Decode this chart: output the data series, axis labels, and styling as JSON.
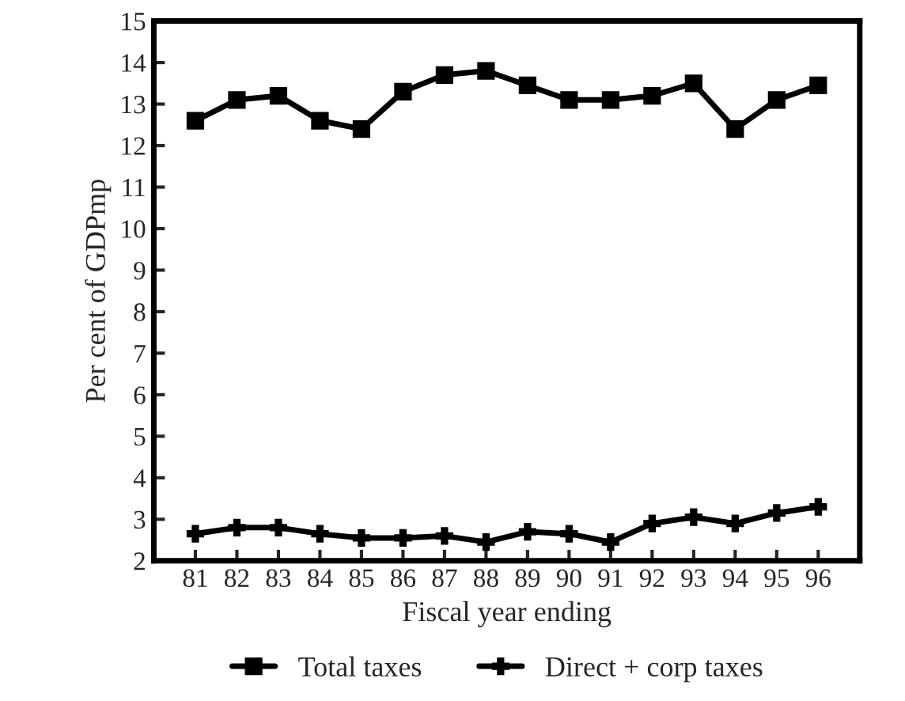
{
  "chart_data": {
    "type": "line",
    "xlabel": "Fiscal year ending",
    "ylabel": "Per cent of GDPmp",
    "categories": [
      "81",
      "82",
      "83",
      "84",
      "85",
      "86",
      "87",
      "88",
      "89",
      "90",
      "91",
      "92",
      "93",
      "94",
      "95",
      "96"
    ],
    "series": [
      {
        "name": "Total taxes",
        "color": "#000000",
        "marker": "square",
        "values": [
          12.6,
          13.1,
          13.2,
          12.6,
          12.4,
          13.3,
          13.7,
          13.8,
          13.45,
          13.1,
          13.1,
          13.2,
          13.5,
          12.4,
          13.1,
          13.45
        ]
      },
      {
        "name": "Direct + corp taxes",
        "color": "#000000",
        "marker": "cross",
        "values": [
          2.65,
          2.8,
          2.8,
          2.65,
          2.55,
          2.55,
          2.6,
          2.45,
          2.7,
          2.65,
          2.45,
          2.9,
          3.05,
          2.9,
          3.15,
          3.3
        ]
      }
    ],
    "ylim": [
      2,
      15
    ],
    "yticks": [
      2,
      3,
      4,
      5,
      6,
      7,
      8,
      9,
      10,
      11,
      12,
      13,
      14,
      15
    ],
    "grid": false,
    "legend": "bottom",
    "line_style": "solid"
  }
}
